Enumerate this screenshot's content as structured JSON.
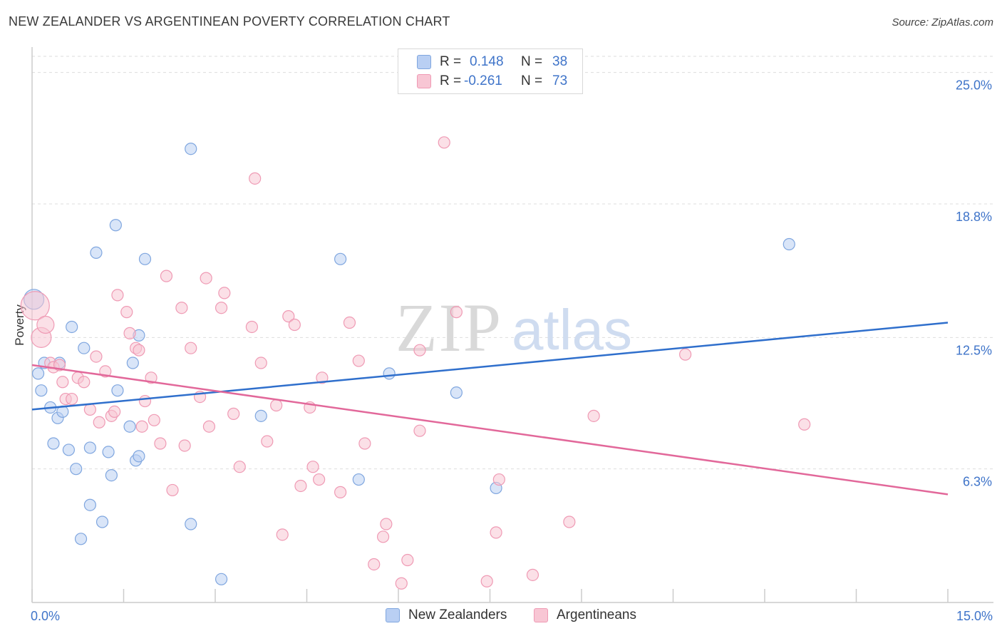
{
  "title": "NEW ZEALANDER VS ARGENTINEAN POVERTY CORRELATION CHART",
  "source": "Source: ZipAtlas.com",
  "watermark": {
    "zip": "ZIP",
    "atlas": "atlas"
  },
  "legend_top": {
    "r_label": "R =",
    "n_label": "N =",
    "rows": [
      {
        "r": "0.148",
        "n": "38"
      },
      {
        "r": "-0.261",
        "n": "73"
      }
    ]
  },
  "colors": {
    "blue_fill": "#b9cff3",
    "blue_stroke": "#7fa6df",
    "blue_line": "#2f6fcc",
    "pink_fill": "#f8c6d4",
    "pink_stroke": "#ef9ab4",
    "pink_line": "#e2689a",
    "tick_label": "#3f74c9",
    "grid": "#dddddd",
    "axis": "#cccccc"
  },
  "chart_data": {
    "type": "scatter",
    "title": "NEW ZEALANDER VS ARGENTINEAN POVERTY CORRELATION CHART",
    "xlabel": "",
    "ylabel": "Poverty",
    "xlim": [
      0,
      15
    ],
    "ylim": [
      0,
      26.2
    ],
    "x_tick_labels": [
      {
        "value": 0,
        "label": "0.0%"
      },
      {
        "value": 15,
        "label": "15.0%"
      }
    ],
    "y_ticks": [
      {
        "value": 6.3,
        "label": "6.3%"
      },
      {
        "value": 12.5,
        "label": "12.5%"
      },
      {
        "value": 18.8,
        "label": "18.8%"
      },
      {
        "value": 25.0,
        "label": "25.0%"
      }
    ],
    "series": [
      {
        "name": "New Zealanders",
        "color": "blue",
        "r": 0.148,
        "n": 38,
        "trend": {
          "x": [
            0,
            15
          ],
          "y": [
            9.1,
            13.2
          ]
        },
        "points": [
          {
            "x": 0.03,
            "y": 14.3,
            "s": 14
          },
          {
            "x": 0.1,
            "y": 10.8
          },
          {
            "x": 0.2,
            "y": 11.3
          },
          {
            "x": 0.15,
            "y": 10.0
          },
          {
            "x": 0.3,
            "y": 9.2
          },
          {
            "x": 0.45,
            "y": 11.3
          },
          {
            "x": 0.35,
            "y": 7.5
          },
          {
            "x": 0.42,
            "y": 8.7
          },
          {
            "x": 0.5,
            "y": 9.0
          },
          {
            "x": 0.6,
            "y": 7.2
          },
          {
            "x": 0.65,
            "y": 13.0
          },
          {
            "x": 0.72,
            "y": 6.3
          },
          {
            "x": 0.85,
            "y": 12.0
          },
          {
            "x": 0.95,
            "y": 7.3
          },
          {
            "x": 1.05,
            "y": 16.5
          },
          {
            "x": 0.95,
            "y": 4.6
          },
          {
            "x": 0.8,
            "y": 3.0
          },
          {
            "x": 1.15,
            "y": 3.8
          },
          {
            "x": 1.25,
            "y": 7.1
          },
          {
            "x": 1.3,
            "y": 6.0
          },
          {
            "x": 1.37,
            "y": 17.8
          },
          {
            "x": 1.4,
            "y": 10.0
          },
          {
            "x": 1.65,
            "y": 11.3
          },
          {
            "x": 1.7,
            "y": 6.7
          },
          {
            "x": 1.75,
            "y": 6.9
          },
          {
            "x": 1.75,
            "y": 12.6
          },
          {
            "x": 1.85,
            "y": 16.2
          },
          {
            "x": 1.6,
            "y": 8.3
          },
          {
            "x": 2.6,
            "y": 21.4
          },
          {
            "x": 2.6,
            "y": 3.7
          },
          {
            "x": 3.1,
            "y": 1.1
          },
          {
            "x": 3.75,
            "y": 8.8
          },
          {
            "x": 5.05,
            "y": 16.2
          },
          {
            "x": 5.35,
            "y": 5.8
          },
          {
            "x": 5.85,
            "y": 10.8
          },
          {
            "x": 6.95,
            "y": 9.9
          },
          {
            "x": 7.6,
            "y": 5.4
          },
          {
            "x": 12.4,
            "y": 16.9
          }
        ]
      },
      {
        "name": "Argentineans",
        "color": "pink",
        "r": -0.261,
        "n": 73,
        "trend": {
          "x": [
            0,
            15
          ],
          "y": [
            11.2,
            5.1
          ]
        },
        "points": [
          {
            "x": 0.05,
            "y": 14.0,
            "s": 20
          },
          {
            "x": 0.15,
            "y": 12.5,
            "s": 14
          },
          {
            "x": 0.22,
            "y": 13.1,
            "s": 12
          },
          {
            "x": 0.3,
            "y": 11.3
          },
          {
            "x": 0.35,
            "y": 11.1
          },
          {
            "x": 0.45,
            "y": 11.2
          },
          {
            "x": 0.5,
            "y": 10.4
          },
          {
            "x": 0.55,
            "y": 9.6
          },
          {
            "x": 0.65,
            "y": 9.6
          },
          {
            "x": 0.75,
            "y": 10.6
          },
          {
            "x": 0.85,
            "y": 10.4
          },
          {
            "x": 0.95,
            "y": 9.1
          },
          {
            "x": 1.05,
            "y": 11.6
          },
          {
            "x": 1.1,
            "y": 8.5
          },
          {
            "x": 1.2,
            "y": 10.9
          },
          {
            "x": 1.3,
            "y": 8.8
          },
          {
            "x": 1.35,
            "y": 9.0
          },
          {
            "x": 1.4,
            "y": 14.5
          },
          {
            "x": 1.55,
            "y": 13.7
          },
          {
            "x": 1.6,
            "y": 12.7
          },
          {
            "x": 1.7,
            "y": 12.0
          },
          {
            "x": 1.75,
            "y": 11.9
          },
          {
            "x": 1.8,
            "y": 8.3
          },
          {
            "x": 1.85,
            "y": 9.5
          },
          {
            "x": 1.95,
            "y": 10.6
          },
          {
            "x": 2.0,
            "y": 8.6
          },
          {
            "x": 2.1,
            "y": 7.5
          },
          {
            "x": 2.2,
            "y": 15.4
          },
          {
            "x": 2.3,
            "y": 5.3
          },
          {
            "x": 2.45,
            "y": 13.9
          },
          {
            "x": 2.5,
            "y": 7.4
          },
          {
            "x": 2.6,
            "y": 12.0
          },
          {
            "x": 2.75,
            "y": 9.7
          },
          {
            "x": 2.85,
            "y": 15.3
          },
          {
            "x": 2.9,
            "y": 8.3
          },
          {
            "x": 3.1,
            "y": 13.9
          },
          {
            "x": 3.15,
            "y": 14.6
          },
          {
            "x": 3.3,
            "y": 8.9
          },
          {
            "x": 3.4,
            "y": 6.4
          },
          {
            "x": 3.6,
            "y": 13.0
          },
          {
            "x": 3.65,
            "y": 20.0
          },
          {
            "x": 3.75,
            "y": 11.3
          },
          {
            "x": 3.85,
            "y": 7.6
          },
          {
            "x": 4.0,
            "y": 9.3
          },
          {
            "x": 4.1,
            "y": 3.2
          },
          {
            "x": 4.2,
            "y": 13.5
          },
          {
            "x": 4.3,
            "y": 13.1
          },
          {
            "x": 4.4,
            "y": 5.5
          },
          {
            "x": 4.55,
            "y": 9.2
          },
          {
            "x": 4.6,
            "y": 6.4
          },
          {
            "x": 4.7,
            "y": 5.8
          },
          {
            "x": 4.75,
            "y": 10.6
          },
          {
            "x": 5.05,
            "y": 5.2
          },
          {
            "x": 5.2,
            "y": 13.2
          },
          {
            "x": 5.35,
            "y": 11.4
          },
          {
            "x": 5.45,
            "y": 7.5
          },
          {
            "x": 5.6,
            "y": 1.8
          },
          {
            "x": 5.75,
            "y": 3.1
          },
          {
            "x": 5.8,
            "y": 3.7
          },
          {
            "x": 6.05,
            "y": 0.9
          },
          {
            "x": 6.15,
            "y": 2.0
          },
          {
            "x": 6.35,
            "y": 8.1
          },
          {
            "x": 6.35,
            "y": 11.9
          },
          {
            "x": 6.75,
            "y": 21.7
          },
          {
            "x": 6.95,
            "y": 13.7
          },
          {
            "x": 7.45,
            "y": 1.0
          },
          {
            "x": 7.6,
            "y": 3.3
          },
          {
            "x": 7.65,
            "y": 5.8
          },
          {
            "x": 8.2,
            "y": 1.3
          },
          {
            "x": 8.8,
            "y": 3.8
          },
          {
            "x": 9.2,
            "y": 8.8
          },
          {
            "x": 10.7,
            "y": 11.7
          },
          {
            "x": 12.65,
            "y": 8.4
          }
        ]
      }
    ]
  },
  "bottom_legend": [
    {
      "label": "New Zealanders",
      "color": "blue"
    },
    {
      "label": "Argentineans",
      "color": "pink"
    }
  ]
}
